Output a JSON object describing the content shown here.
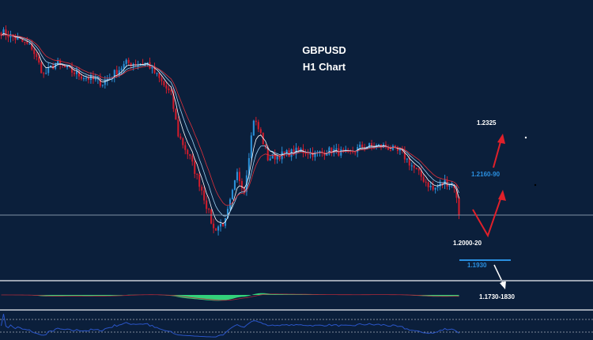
{
  "title": "GBPUSD",
  "subtitle": "H1 Chart",
  "colors": {
    "background": "#0b1f3b",
    "bull_candle": "#2a8fd6",
    "bear_candle": "#d01c2c",
    "ma_fast": "#ffffff",
    "ma_mid": "#9fd4f5",
    "ma_slow": "#e0303a",
    "oscillator_fill": "#33d17a",
    "rsi_line": "#2a55c8",
    "annotation_red": "#e0202a",
    "annotation_blue": "#2a8fe0",
    "annotation_white": "#ffffff"
  },
  "annotations": {
    "target_high": "1.2325",
    "target_mid": "1.2160-90",
    "support": "1.2000-20",
    "support_low": "1.1930",
    "target_low": "1.1730-1830"
  },
  "chart_data": {
    "type": "candlestick",
    "title": "GBPUSD",
    "subtitle": "H1 Chart",
    "xlabel": "",
    "ylabel": "",
    "ylim": [
      1.1916,
      1.2336
    ],
    "grid": false,
    "horizontal_level": 1.201,
    "close_path": [
      {
        "bar": 0,
        "price": 1.2288
      },
      {
        "bar": 7,
        "price": 1.2276
      },
      {
        "bar": 13,
        "price": 1.2264
      },
      {
        "bar": 18,
        "price": 1.2222
      },
      {
        "bar": 23,
        "price": 1.224
      },
      {
        "bar": 33,
        "price": 1.2222
      },
      {
        "bar": 43,
        "price": 1.221
      },
      {
        "bar": 53,
        "price": 1.224
      },
      {
        "bar": 62,
        "price": 1.224
      },
      {
        "bar": 67,
        "price": 1.2216
      },
      {
        "bar": 72,
        "price": 1.2192
      },
      {
        "bar": 75,
        "price": 1.2132
      },
      {
        "bar": 80,
        "price": 1.2096
      },
      {
        "bar": 85,
        "price": 1.2048
      },
      {
        "bar": 90,
        "price": 1.1988
      },
      {
        "bar": 95,
        "price": 1.2
      },
      {
        "bar": 100,
        "price": 1.2072
      },
      {
        "bar": 103,
        "price": 1.2048
      },
      {
        "bar": 107,
        "price": 1.2156
      },
      {
        "bar": 110,
        "price": 1.2132
      },
      {
        "bar": 113,
        "price": 1.2096
      },
      {
        "bar": 120,
        "price": 1.2102
      },
      {
        "bar": 127,
        "price": 1.2108
      },
      {
        "bar": 133,
        "price": 1.2102
      },
      {
        "bar": 140,
        "price": 1.2108
      },
      {
        "bar": 147,
        "price": 1.2102
      },
      {
        "bar": 153,
        "price": 1.2114
      },
      {
        "bar": 163,
        "price": 1.2114
      },
      {
        "bar": 170,
        "price": 1.2102
      },
      {
        "bar": 177,
        "price": 1.2072
      },
      {
        "bar": 183,
        "price": 1.2048
      },
      {
        "bar": 188,
        "price": 1.206
      },
      {
        "bar": 192,
        "price": 1.2054
      },
      {
        "bar": 194,
        "price": 1.2012
      }
    ]
  }
}
